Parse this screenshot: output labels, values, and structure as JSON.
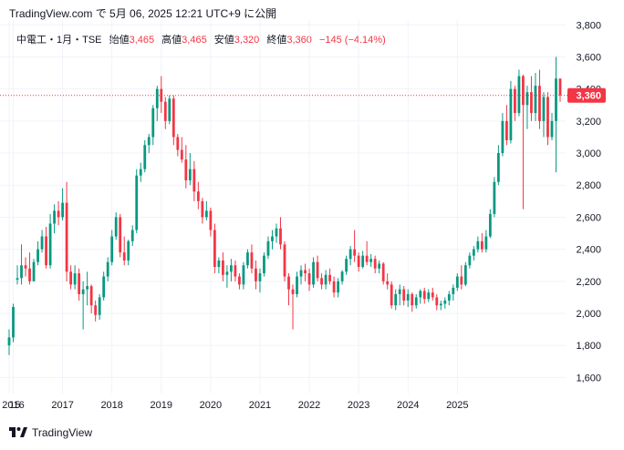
{
  "header": {
    "text": "TradingView.com で 5月 06, 2025 12:21 UTC+9 に公開"
  },
  "legend": {
    "symbol": "中電工・1月・TSE",
    "open_label": "始値",
    "open_value": "3,465",
    "high_label": "高値",
    "high_value": "3,465",
    "low_label": "安値",
    "low_value": "3,320",
    "close_label": "終値",
    "close_value": "3,360",
    "change": "−145 (−4.14%)"
  },
  "footer": {
    "brand": "TradingView"
  },
  "colors": {
    "up": "#089981",
    "down": "#f23645",
    "grid": "#f0f3fa",
    "text": "#131722"
  },
  "chart_data": {
    "type": "candlestick",
    "interval": "1 month",
    "ylim": [
      1500,
      3830
    ],
    "y_ticks": [
      1600,
      1800,
      2000,
      2200,
      2400,
      2600,
      2800,
      3000,
      3200,
      3400,
      3600,
      3800
    ],
    "y_tick_labels": [
      "1,600",
      "1,800",
      "2,000",
      "2,200",
      "2,400",
      "2,600",
      "2,800",
      "3,000",
      "3,200",
      "3,400",
      "3,600",
      "3,800"
    ],
    "x_labels": [
      "15",
      "2016",
      "2017",
      "2018",
      "2019",
      "2020",
      "2021",
      "2022",
      "2023",
      "2024",
      "2025"
    ],
    "start": "2015-12",
    "last_price": 3360,
    "last_price_label": "3,360",
    "ohlc": [
      [
        1800,
        1900,
        1740,
        1850
      ],
      [
        1850,
        2060,
        1820,
        2040
      ],
      [
        2210,
        2300,
        2180,
        2220
      ],
      [
        2220,
        2430,
        2180,
        2300
      ],
      [
        2300,
        2350,
        2230,
        2280
      ],
      [
        2280,
        2380,
        2180,
        2200
      ],
      [
        2200,
        2340,
        2200,
        2320
      ],
      [
        2320,
        2450,
        2300,
        2400
      ],
      [
        2400,
        2520,
        2380,
        2480
      ],
      [
        2480,
        2540,
        2280,
        2300
      ],
      [
        2300,
        2620,
        2280,
        2560
      ],
      [
        2560,
        2680,
        2500,
        2640
      ],
      [
        2640,
        2700,
        2550,
        2600
      ],
      [
        2600,
        2780,
        2580,
        2690
      ],
      [
        2690,
        2820,
        2200,
        2260
      ],
      [
        2260,
        2300,
        2150,
        2180
      ],
      [
        2180,
        2300,
        2150,
        2250
      ],
      [
        2250,
        2280,
        2080,
        2120
      ],
      [
        2120,
        2200,
        1900,
        2150
      ],
      [
        2150,
        2260,
        2050,
        2170
      ],
      [
        2170,
        2180,
        2000,
        2050
      ],
      [
        2050,
        2080,
        1950,
        1990
      ],
      [
        1990,
        2120,
        1960,
        2100
      ],
      [
        2100,
        2260,
        2080,
        2230
      ],
      [
        2230,
        2350,
        2200,
        2320
      ],
      [
        2320,
        2520,
        2300,
        2480
      ],
      [
        2480,
        2630,
        2460,
        2600
      ],
      [
        2600,
        2620,
        2350,
        2380
      ],
      [
        2380,
        2480,
        2300,
        2330
      ],
      [
        2330,
        2460,
        2300,
        2450
      ],
      [
        2450,
        2550,
        2420,
        2520
      ],
      [
        2520,
        2900,
        2500,
        2860
      ],
      [
        2860,
        2940,
        2820,
        2900
      ],
      [
        2900,
        3080,
        2880,
        3050
      ],
      [
        3050,
        3120,
        3000,
        3100
      ],
      [
        3100,
        3300,
        3050,
        3280
      ],
      [
        3280,
        3420,
        3200,
        3400
      ],
      [
        3400,
        3480,
        3250,
        3320
      ],
      [
        3320,
        3350,
        3150,
        3200
      ],
      [
        3200,
        3360,
        3180,
        3340
      ],
      [
        3340,
        3360,
        3050,
        3100
      ],
      [
        3100,
        3120,
        2980,
        3020
      ],
      [
        3020,
        3100,
        2940,
        2960
      ],
      [
        2960,
        3050,
        2780,
        2830
      ],
      [
        2830,
        3000,
        2800,
        2900
      ],
      [
        2900,
        2950,
        2700,
        2760
      ],
      [
        2760,
        2820,
        2650,
        2700
      ],
      [
        2700,
        2720,
        2560,
        2600
      ],
      [
        2600,
        2700,
        2580,
        2640
      ],
      [
        2640,
        2660,
        2480,
        2520
      ],
      [
        2520,
        2560,
        2250,
        2290
      ],
      [
        2290,
        2350,
        2250,
        2330
      ],
      [
        2330,
        2380,
        2200,
        2240
      ],
      [
        2240,
        2300,
        2160,
        2260
      ],
      [
        2260,
        2340,
        2200,
        2300
      ],
      [
        2300,
        2330,
        2200,
        2230
      ],
      [
        2230,
        2250,
        2150,
        2180
      ],
      [
        2180,
        2320,
        2150,
        2300
      ],
      [
        2300,
        2400,
        2280,
        2380
      ],
      [
        2380,
        2430,
        2250,
        2280
      ],
      [
        2280,
        2330,
        2150,
        2200
      ],
      [
        2200,
        2280,
        2130,
        2250
      ],
      [
        2250,
        2380,
        2230,
        2360
      ],
      [
        2360,
        2480,
        2340,
        2450
      ],
      [
        2450,
        2520,
        2400,
        2480
      ],
      [
        2480,
        2560,
        2440,
        2530
      ],
      [
        2530,
        2600,
        2400,
        2430
      ],
      [
        2430,
        2450,
        2200,
        2230
      ],
      [
        2230,
        2250,
        2050,
        2150
      ],
      [
        2150,
        2180,
        1900,
        2120
      ],
      [
        2120,
        2260,
        2100,
        2230
      ],
      [
        2230,
        2300,
        2180,
        2270
      ],
      [
        2270,
        2310,
        2200,
        2250
      ],
      [
        2250,
        2280,
        2140,
        2180
      ],
      [
        2180,
        2350,
        2160,
        2320
      ],
      [
        2320,
        2360,
        2200,
        2220
      ],
      [
        2220,
        2250,
        2150,
        2180
      ],
      [
        2180,
        2270,
        2150,
        2240
      ],
      [
        2240,
        2280,
        2180,
        2200
      ],
      [
        2200,
        2230,
        2100,
        2130
      ],
      [
        2130,
        2220,
        2100,
        2200
      ],
      [
        2200,
        2270,
        2180,
        2260
      ],
      [
        2260,
        2360,
        2240,
        2340
      ],
      [
        2340,
        2420,
        2300,
        2400
      ],
      [
        2400,
        2520,
        2320,
        2360
      ],
      [
        2360,
        2380,
        2260,
        2290
      ],
      [
        2290,
        2390,
        2280,
        2360
      ],
      [
        2360,
        2450,
        2300,
        2320
      ],
      [
        2320,
        2370,
        2290,
        2340
      ],
      [
        2340,
        2360,
        2250,
        2280
      ],
      [
        2280,
        2330,
        2250,
        2310
      ],
      [
        2310,
        2320,
        2180,
        2200
      ],
      [
        2200,
        2250,
        2150,
        2180
      ],
      [
        2180,
        2200,
        2030,
        2050
      ],
      [
        2050,
        2150,
        2020,
        2120
      ],
      [
        2120,
        2180,
        2050,
        2150
      ],
      [
        2150,
        2170,
        2050,
        2080
      ],
      [
        2080,
        2150,
        2040,
        2120
      ],
      [
        2120,
        2130,
        2010,
        2050
      ],
      [
        2050,
        2120,
        2030,
        2100
      ],
      [
        2100,
        2150,
        2060,
        2140
      ],
      [
        2140,
        2160,
        2060,
        2090
      ],
      [
        2090,
        2150,
        2070,
        2130
      ],
      [
        2130,
        2160,
        2080,
        2100
      ],
      [
        2100,
        2120,
        2020,
        2050
      ],
      [
        2050,
        2080,
        2020,
        2060
      ],
      [
        2060,
        2100,
        2030,
        2080
      ],
      [
        2080,
        2140,
        2050,
        2120
      ],
      [
        2120,
        2180,
        2080,
        2160
      ],
      [
        2160,
        2250,
        2140,
        2230
      ],
      [
        2230,
        2300,
        2150,
        2180
      ],
      [
        2180,
        2320,
        2170,
        2300
      ],
      [
        2300,
        2380,
        2280,
        2360
      ],
      [
        2360,
        2420,
        2330,
        2400
      ],
      [
        2400,
        2480,
        2380,
        2450
      ],
      [
        2450,
        2500,
        2380,
        2400
      ],
      [
        2400,
        2520,
        2380,
        2480
      ],
      [
        2480,
        2650,
        2470,
        2620
      ],
      [
        2620,
        2850,
        2600,
        2820
      ],
      [
        2820,
        3050,
        2800,
        3000
      ],
      [
        3000,
        3250,
        2980,
        3200
      ],
      [
        3200,
        3300,
        3050,
        3080
      ],
      [
        3080,
        3450,
        3060,
        3400
      ],
      [
        3400,
        3420,
        3200,
        3250
      ],
      [
        3250,
        3520,
        3230,
        3480
      ],
      [
        3480,
        3490,
        2650,
        3300
      ],
      [
        3300,
        3420,
        3150,
        3380
      ],
      [
        3380,
        3480,
        3200,
        3250
      ],
      [
        3250,
        3500,
        3200,
        3420
      ],
      [
        3420,
        3520,
        3150,
        3200
      ],
      [
        3200,
        3380,
        3100,
        3350
      ],
      [
        3350,
        3380,
        3050,
        3100
      ],
      [
        3100,
        3250,
        3080,
        3200
      ],
      [
        3200,
        3600,
        2880,
        3465
      ],
      [
        3465,
        3465,
        3320,
        3360
      ]
    ]
  }
}
